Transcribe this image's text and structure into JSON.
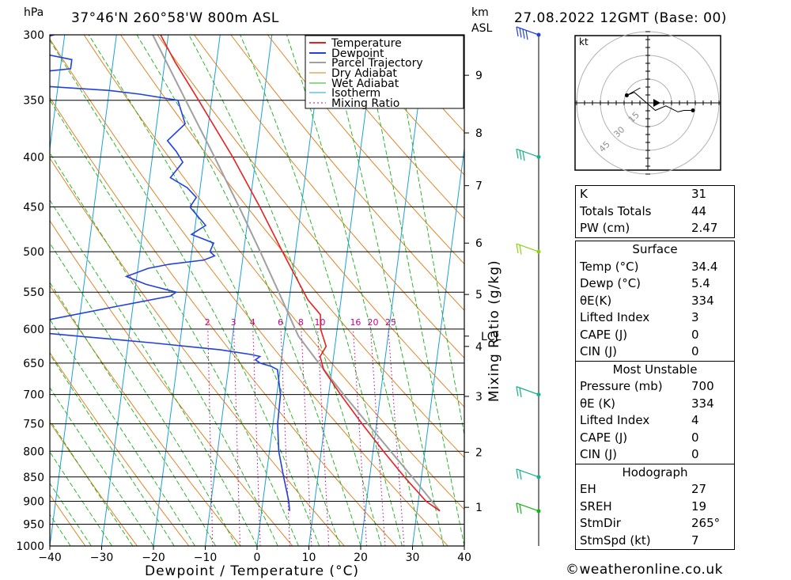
{
  "header": {
    "location": "37°46'N  260°58'W  800m  ASL",
    "datetime": "27.08.2022  12GMT  (Base: 00)",
    "left_unit": "hPa",
    "right_unit_km": "km",
    "right_unit_asl": "ASL"
  },
  "chart_data": {
    "type": "skew-t log-p sounding",
    "xlabel": "Dewpoint / Temperature (°C)",
    "ylabel_right": "Mixing Ratio (g/kg)",
    "x_ticks": [
      -40,
      -30,
      -20,
      -10,
      0,
      10,
      20,
      30,
      40
    ],
    "x_tick_labels": [
      "−40",
      "−30",
      "−20",
      "−10",
      "0",
      "10",
      "20",
      "30",
      "40"
    ],
    "pressure_levels": [
      300,
      350,
      400,
      450,
      500,
      550,
      600,
      650,
      700,
      750,
      800,
      850,
      900,
      950,
      1000
    ],
    "altitude_km": [
      {
        "km": 1,
        "p": 913
      },
      {
        "km": 2,
        "p": 802
      },
      {
        "km": 3,
        "p": 703
      },
      {
        "km": 4,
        "p": 625
      },
      {
        "km": 5,
        "p": 553
      },
      {
        "km": 6,
        "p": 490
      },
      {
        "km": 7,
        "p": 428
      },
      {
        "km": 8,
        "p": 378
      },
      {
        "km": 9,
        "p": 330
      }
    ],
    "lcl": {
      "label": "LCL",
      "p": 610
    },
    "mixing_ratio_labels": [
      "2",
      "3",
      "4",
      "6",
      "8",
      "10",
      "16",
      "20",
      "25"
    ],
    "mixing_ratio_values": [
      2,
      3,
      4,
      6,
      8,
      10,
      16,
      20,
      25
    ],
    "legend": [
      "Temperature",
      "Dewpoint",
      "Parcel Trajectory",
      "Dry Adiabat",
      "Wet Adiabat",
      "Isotherm",
      "Mixing Ratio"
    ],
    "colors": {
      "temperature": "#e82020",
      "dewpoint": "#2040e0",
      "parcel": "#a0a0a0",
      "dry": "#e07810",
      "wet": "#18b018",
      "isotherm": "#1aa0e0",
      "mixing": "#c8008c"
    },
    "temperature": [
      [
        921,
        34.4
      ],
      [
        900,
        31.5
      ],
      [
        850,
        26.7
      ],
      [
        800,
        22.0
      ],
      [
        750,
        17.2
      ],
      [
        700,
        12.3
      ],
      [
        660,
        8.4
      ],
      [
        640,
        7.4
      ],
      [
        625,
        8.3
      ],
      [
        600,
        6.8
      ],
      [
        580,
        6.4
      ],
      [
        560,
        3.6
      ],
      [
        500,
        -2.5
      ],
      [
        450,
        -8.0
      ],
      [
        400,
        -14.5
      ],
      [
        350,
        -22.5
      ],
      [
        320,
        -28.0
      ],
      [
        300,
        -31.5
      ]
    ],
    "dewpoint": [
      [
        921,
        5.4
      ],
      [
        900,
        5.0
      ],
      [
        850,
        3.4
      ],
      [
        800,
        1.8
      ],
      [
        750,
        0.9
      ],
      [
        700,
        0.7
      ],
      [
        660,
        -0.5
      ],
      [
        655,
        -1.8
      ],
      [
        650,
        -4.0
      ],
      [
        645,
        -5.0
      ],
      [
        640,
        -4.2
      ],
      [
        637,
        -6.0
      ],
      [
        630,
        -12.0
      ],
      [
        620,
        -25.0
      ],
      [
        600,
        -55.0
      ],
      [
        590,
        -48.0
      ],
      [
        570,
        -34.0
      ],
      [
        555,
        -23.0
      ],
      [
        550,
        -22.0
      ],
      [
        540,
        -28.0
      ],
      [
        530,
        -32.0
      ],
      [
        520,
        -28.0
      ],
      [
        515,
        -24.0
      ],
      [
        510,
        -17.5
      ],
      [
        505,
        -15.5
      ],
      [
        500,
        -16.5
      ],
      [
        490,
        -16.0
      ],
      [
        480,
        -20.5
      ],
      [
        470,
        -18.0
      ],
      [
        450,
        -21.5
      ],
      [
        440,
        -20.5
      ],
      [
        430,
        -22.5
      ],
      [
        420,
        -26.0
      ],
      [
        405,
        -24.0
      ],
      [
        395,
        -25.5
      ],
      [
        385,
        -27.5
      ],
      [
        370,
        -24.5
      ],
      [
        355,
        -26.0
      ],
      [
        350,
        -26.5
      ],
      [
        345,
        -34.0
      ],
      [
        342,
        -40.0
      ],
      [
        338,
        -55.0
      ],
      [
        332,
        -66.0
      ],
      [
        330,
        -60.0
      ],
      [
        325,
        -48.0
      ],
      [
        318,
        -48.0
      ],
      [
        312,
        -56.0
      ],
      [
        308,
        -55.0
      ],
      [
        304,
        -56.0
      ],
      [
        300,
        -52.0
      ]
    ],
    "parcel": [
      [
        921,
        34.4
      ],
      [
        850,
        28.2
      ],
      [
        800,
        23.4
      ],
      [
        750,
        18.3
      ],
      [
        700,
        12.9
      ],
      [
        650,
        7.3
      ],
      [
        610,
        2.7
      ],
      [
        600,
        1.9
      ],
      [
        550,
        -2.2
      ],
      [
        500,
        -6.8
      ],
      [
        450,
        -12.0
      ],
      [
        400,
        -18.0
      ],
      [
        350,
        -25.0
      ],
      [
        300,
        -33.0
      ]
    ],
    "wind_barbs": [
      {
        "p": 300,
        "label": "~65 kt"
      },
      {
        "p": 400,
        "label": "~30 kt"
      },
      {
        "p": 500,
        "label": "~15 kt"
      },
      {
        "p": 700,
        "label": "~10 kt"
      },
      {
        "p": 850,
        "label": "~10 kt"
      },
      {
        "p": 921,
        "label": "~5 kt"
      }
    ]
  },
  "legend_labels": {
    "temperature": "Temperature",
    "dewpoint": "Dewpoint",
    "parcel": "Parcel Trajectory",
    "dry": "Dry Adiabat",
    "wet": "Wet Adiabat",
    "isotherm": "Isotherm",
    "mixing": "Mixing Ratio"
  },
  "hodograph": {
    "unit": "kt",
    "ring_labels": [
      "15",
      "30",
      "45"
    ],
    "points_kt": [
      [
        -5,
        10
      ],
      [
        -14,
        5
      ],
      [
        -9,
        7
      ],
      [
        5,
        -5
      ],
      [
        12,
        -2
      ],
      [
        20,
        -6
      ],
      [
        24,
        -5
      ],
      [
        30,
        -5
      ]
    ]
  },
  "indices": {
    "top": [
      {
        "key": "K",
        "value": "31"
      },
      {
        "key": "Totals Totals",
        "value": "44"
      },
      {
        "key": "PW (cm)",
        "value": "2.47"
      }
    ],
    "surface": {
      "title": "Surface",
      "rows": [
        {
          "key": "Temp (°C)",
          "value": "34.4"
        },
        {
          "key": "Dewp (°C)",
          "value": "5.4"
        },
        {
          "key": "θE(K)",
          "value": "334"
        },
        {
          "key": "Lifted Index",
          "value": "3"
        },
        {
          "key": "CAPE (J)",
          "value": "0"
        },
        {
          "key": "CIN (J)",
          "value": "0"
        }
      ]
    },
    "most_unstable": {
      "title": "Most Unstable",
      "rows": [
        {
          "key": "Pressure (mb)",
          "value": "700"
        },
        {
          "key": "θE (K)",
          "value": "334"
        },
        {
          "key": "Lifted Index",
          "value": "4"
        },
        {
          "key": "CAPE (J)",
          "value": "0"
        },
        {
          "key": "CIN (J)",
          "value": "0"
        }
      ]
    },
    "hodograph": {
      "title": "Hodograph",
      "rows": [
        {
          "key": "EH",
          "value": "27"
        },
        {
          "key": "SREH",
          "value": "19"
        },
        {
          "key": "StmDir",
          "value": "265°"
        },
        {
          "key": "StmSpd (kt)",
          "value": "7"
        }
      ]
    }
  },
  "copyright": "©weatheronline.co.uk"
}
